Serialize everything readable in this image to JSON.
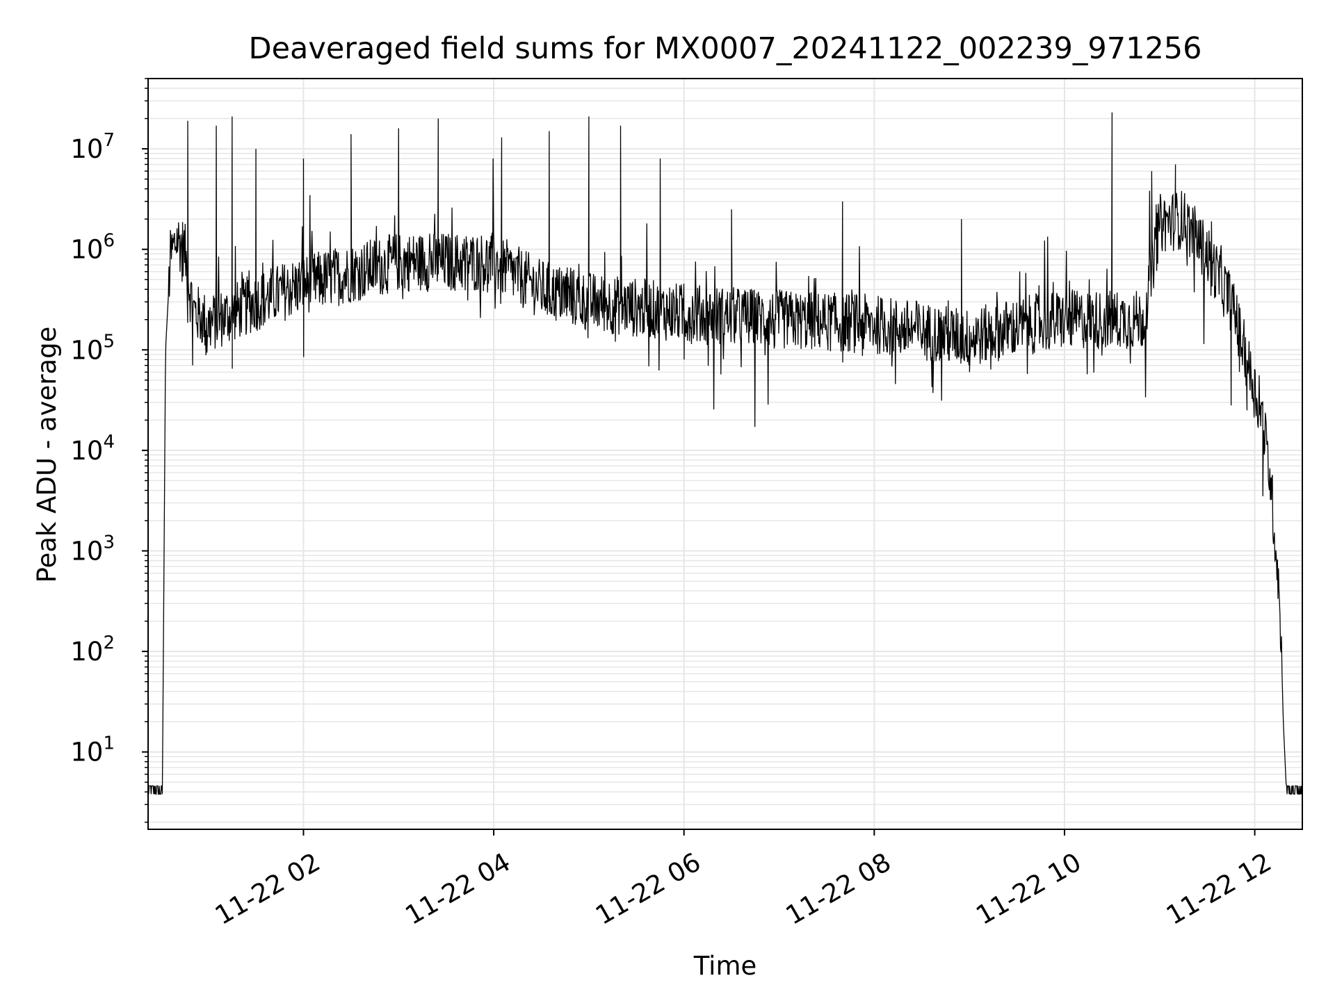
{
  "chart_data": {
    "type": "line",
    "title": "Deaveraged field sums for MX0007_20241122_002239_971256",
    "xlabel": "Time",
    "ylabel": "Peak ADU - average",
    "x_scale": "time",
    "y_scale": "log",
    "xlim": [
      "2024-11-22 00:22",
      "2024-11-22 12:30"
    ],
    "ylim": [
      1.7,
      50000000
    ],
    "x_ticks": [
      {
        "value": "2024-11-22 02:00",
        "label": "11-22 02"
      },
      {
        "value": "2024-11-22 04:00",
        "label": "11-22 04"
      },
      {
        "value": "2024-11-22 06:00",
        "label": "11-22 06"
      },
      {
        "value": "2024-11-22 08:00",
        "label": "11-22 08"
      },
      {
        "value": "2024-11-22 10:00",
        "label": "11-22 10"
      },
      {
        "value": "2024-11-22 12:00",
        "label": "11-22 12"
      }
    ],
    "y_ticks": [
      {
        "value": 10,
        "base": "10",
        "exp": "1"
      },
      {
        "value": 100,
        "base": "10",
        "exp": "2"
      },
      {
        "value": 1000,
        "base": "10",
        "exp": "3"
      },
      {
        "value": 10000,
        "base": "10",
        "exp": "4"
      },
      {
        "value": 100000,
        "base": "10",
        "exp": "5"
      },
      {
        "value": 1000000,
        "base": "10",
        "exp": "6"
      },
      {
        "value": 10000000,
        "base": "10",
        "exp": "7"
      }
    ],
    "grid": true,
    "line_color": "#000000",
    "grid_color": "#e6e6e6",
    "series": [
      {
        "envelope_points": [
          {
            "t": "2024-11-22 00:22",
            "y": 4
          },
          {
            "t": "2024-11-22 00:31",
            "y": 4
          },
          {
            "t": "2024-11-22 00:33",
            "y": 100000
          },
          {
            "t": "2024-11-22 00:36",
            "y": 800000
          },
          {
            "t": "2024-11-22 00:40",
            "y": 1300000
          },
          {
            "t": "2024-11-22 00:45",
            "y": 1000000
          },
          {
            "t": "2024-11-22 00:50",
            "y": 250000
          },
          {
            "t": "2024-11-22 01:00",
            "y": 180000
          },
          {
            "t": "2024-11-22 01:30",
            "y": 300000
          },
          {
            "t": "2024-11-22 02:00",
            "y": 450000
          },
          {
            "t": "2024-11-22 03:00",
            "y": 750000
          },
          {
            "t": "2024-11-22 04:00",
            "y": 750000
          },
          {
            "t": "2024-11-22 04:30",
            "y": 400000
          },
          {
            "t": "2024-11-22 05:00",
            "y": 300000
          },
          {
            "t": "2024-11-22 06:00",
            "y": 230000
          },
          {
            "t": "2024-11-22 07:00",
            "y": 200000
          },
          {
            "t": "2024-11-22 08:00",
            "y": 180000
          },
          {
            "t": "2024-11-22 09:00",
            "y": 130000
          },
          {
            "t": "2024-11-22 09:30",
            "y": 170000
          },
          {
            "t": "2024-11-22 10:00",
            "y": 200000
          },
          {
            "t": "2024-11-22 10:50",
            "y": 200000
          },
          {
            "t": "2024-11-22 11:00",
            "y": 1800000
          },
          {
            "t": "2024-11-22 11:15",
            "y": 2000000
          },
          {
            "t": "2024-11-22 11:30",
            "y": 900000
          },
          {
            "t": "2024-11-22 11:45",
            "y": 300000
          },
          {
            "t": "2024-11-22 11:55",
            "y": 80000
          },
          {
            "t": "2024-11-22 12:05",
            "y": 20000
          },
          {
            "t": "2024-11-22 12:10",
            "y": 5000
          },
          {
            "t": "2024-11-22 12:15",
            "y": 500
          },
          {
            "t": "2024-11-22 12:17",
            "y": 80
          },
          {
            "t": "2024-11-22 12:18",
            "y": 20
          },
          {
            "t": "2024-11-22 12:20",
            "y": 4
          },
          {
            "t": "2024-11-22 12:30",
            "y": 4
          }
        ],
        "spikes": [
          {
            "t": "2024-11-22 00:47",
            "y": 19000000
          },
          {
            "t": "2024-11-22 01:05",
            "y": 17000000
          },
          {
            "t": "2024-11-22 01:15",
            "y": 21000000
          },
          {
            "t": "2024-11-22 01:30",
            "y": 10000000
          },
          {
            "t": "2024-11-22 02:00",
            "y": 8000000
          },
          {
            "t": "2024-11-22 02:30",
            "y": 14000000
          },
          {
            "t": "2024-11-22 03:00",
            "y": 16000000
          },
          {
            "t": "2024-11-22 03:25",
            "y": 20000000
          },
          {
            "t": "2024-11-22 04:05",
            "y": 13000000
          },
          {
            "t": "2024-11-22 04:35",
            "y": 15000000
          },
          {
            "t": "2024-11-22 05:00",
            "y": 21000000
          },
          {
            "t": "2024-11-22 05:20",
            "y": 17000000
          },
          {
            "t": "2024-11-22 05:45",
            "y": 8000000
          },
          {
            "t": "2024-11-22 06:30",
            "y": 2500000
          },
          {
            "t": "2024-11-22 07:40",
            "y": 3000000
          },
          {
            "t": "2024-11-22 08:55",
            "y": 2000000
          },
          {
            "t": "2024-11-22 10:30",
            "y": 23000000
          },
          {
            "t": "2024-11-22 10:55",
            "y": 6000000
          },
          {
            "t": "2024-11-22 11:10",
            "y": 7000000
          }
        ],
        "dips": [
          {
            "t": "2024-11-22 00:50",
            "y": 70000
          },
          {
            "t": "2024-11-22 01:15",
            "y": 65000
          },
          {
            "t": "2024-11-22 02:00",
            "y": 85000
          },
          {
            "t": "2024-11-22 06:00",
            "y": 80000
          },
          {
            "t": "2024-11-22 07:40",
            "y": 75000
          },
          {
            "t": "2024-11-22 09:00",
            "y": 60000
          },
          {
            "t": "2024-11-22 11:45",
            "y": 28000
          },
          {
            "t": "2024-11-22 11:55",
            "y": 25000
          },
          {
            "t": "2024-11-22 12:05",
            "y": 3500
          }
        ]
      }
    ]
  }
}
